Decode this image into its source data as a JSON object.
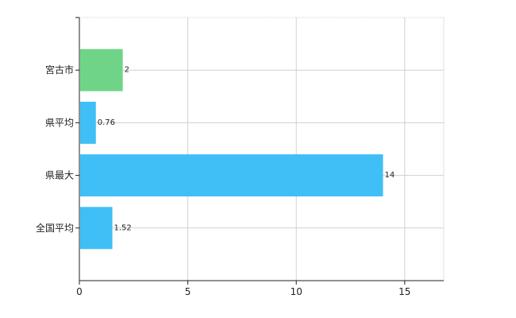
{
  "chart_data": {
    "type": "bar",
    "orientation": "horizontal",
    "title": "",
    "xlabel": "",
    "ylabel": "",
    "categories": [
      "宮古市",
      "県平均",
      "県最大",
      "全国平均"
    ],
    "values": [
      2,
      0.76,
      14,
      1.52
    ],
    "data_labels": [
      "2",
      "0.76",
      "14",
      "1.52"
    ],
    "bar_colors": [
      "#6fd487",
      "#3fbff5",
      "#3fbff5",
      "#3fbff5"
    ],
    "xlim": [
      0,
      16.8
    ],
    "x_ticks": [
      0,
      5,
      10,
      15
    ],
    "x_tick_labels": [
      "0",
      "5",
      "10",
      "15"
    ],
    "grid": true,
    "legend": "none"
  }
}
